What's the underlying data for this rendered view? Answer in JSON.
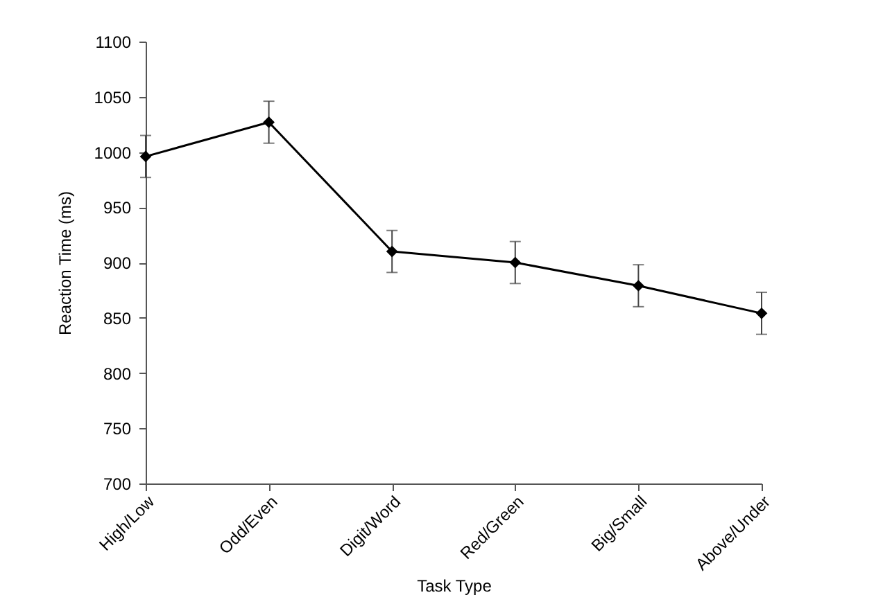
{
  "chart_data": {
    "type": "line",
    "xlabel": "Task Type",
    "ylabel": "Reaction Time (ms)",
    "categories": [
      "High/Low",
      "Odd/Even",
      "Digit/Word",
      "Red/Green",
      "Big/Small",
      "Above/Under"
    ],
    "series": [
      {
        "color": "#000000",
        "values": [
          996,
          1027,
          910,
          900,
          879,
          854
        ],
        "errors": [
          19,
          19,
          19,
          19,
          19,
          19
        ]
      }
    ],
    "ylim": [
      700,
      1100
    ],
    "yticks": [
      700,
      750,
      800,
      850,
      900,
      950,
      1000,
      1050,
      1100
    ],
    "grid": false,
    "marker": "diamond",
    "line_style": "solid",
    "legend": false
  }
}
